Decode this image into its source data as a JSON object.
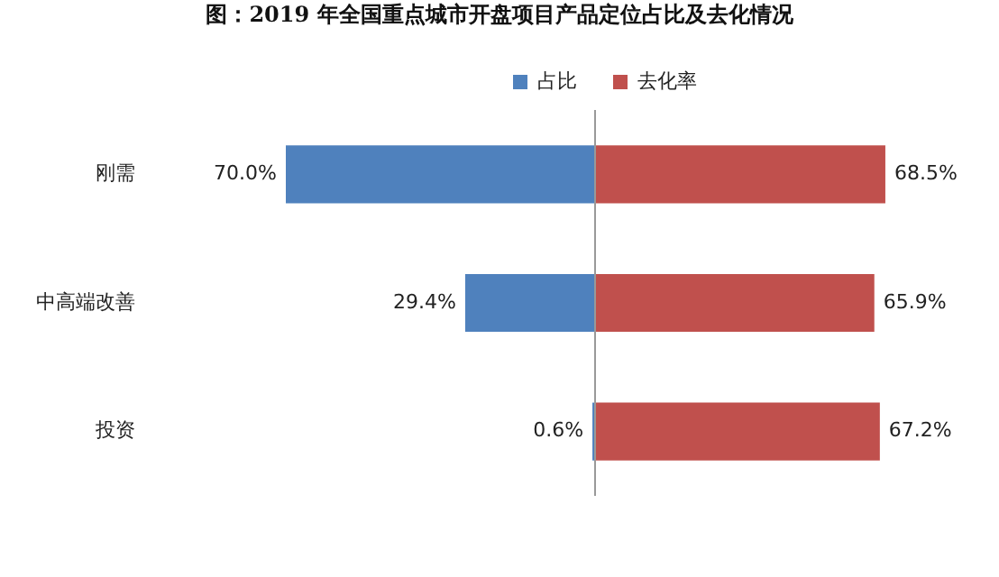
{
  "chart_data": [
    {
      "type": "bar",
      "orientation": "horizontal",
      "title": "图：2019 年全国重点城市开盘项目产品定位占比及去化情况",
      "categories": [
        "刚需",
        "中高端改善",
        "投资"
      ],
      "series": [
        {
          "name": "占比",
          "color": "#4f81bd",
          "values": [
            70.0,
            29.4,
            0.6
          ],
          "value_labels": [
            "70.0%",
            "29.4%",
            "0.6%"
          ]
        }
      ],
      "tick_labels": "y",
      "grid": false,
      "legend": "top"
    },
    {
      "type": "bar",
      "orientation": "horizontal",
      "categories": [
        null,
        null,
        null
      ],
      "series": [
        {
          "name": "去化率",
          "color": "#c0504d",
          "values": [
            68.5,
            65.9,
            67.2
          ],
          "value_labels": [
            "68.5%",
            "65.9%",
            "67.2%"
          ]
        }
      ],
      "tick_labels": false,
      "grid": false,
      "legend": "top"
    }
  ]
}
